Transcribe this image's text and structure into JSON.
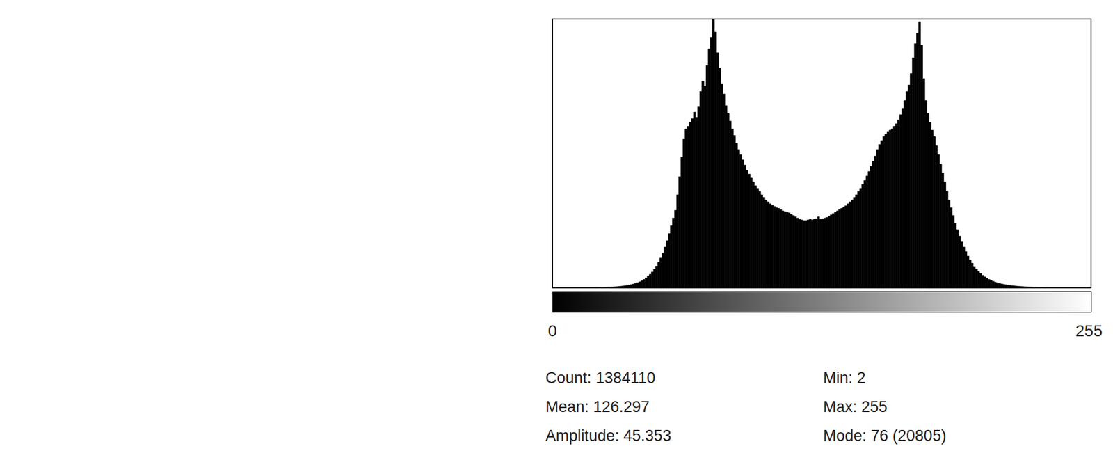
{
  "chart_data": {
    "type": "histogram",
    "color": "#000000",
    "grid": false,
    "tick_labels": "x",
    "xlim": [
      0,
      256
    ],
    "xticks": [
      0,
      255
    ],
    "ylim": [
      0,
      20805
    ],
    "yticks": [],
    "bins": [
      0,
      1,
      2,
      3,
      4,
      5,
      6,
      7,
      8,
      9,
      10,
      11,
      12,
      13,
      14,
      15,
      16,
      17,
      18,
      19,
      20,
      21,
      22,
      23,
      24,
      25,
      26,
      27,
      28,
      29,
      30,
      31,
      32,
      33,
      34,
      35,
      36,
      37,
      38,
      39,
      40,
      41,
      42,
      43,
      44,
      45,
      46,
      47,
      48,
      49,
      50,
      51,
      52,
      53,
      54,
      55,
      56,
      57,
      58,
      59,
      60,
      61,
      62,
      63,
      64,
      65,
      66,
      67,
      68,
      69,
      70,
      71,
      72,
      73,
      74,
      75,
      76,
      77,
      78,
      79,
      80,
      81,
      82,
      83,
      84,
      85,
      86,
      87,
      88,
      89,
      90,
      91,
      92,
      93,
      94,
      95,
      96,
      97,
      98,
      99,
      100,
      101,
      102,
      103,
      104,
      105,
      106,
      107,
      108,
      109,
      110,
      111,
      112,
      113,
      114,
      115,
      116,
      117,
      118,
      119,
      120,
      121,
      122,
      123,
      124,
      125,
      126,
      127,
      128,
      129,
      130,
      131,
      132,
      133,
      134,
      135,
      136,
      137,
      138,
      139,
      140,
      141,
      142,
      143,
      144,
      145,
      146,
      147,
      148,
      149,
      150,
      151,
      152,
      153,
      154,
      155,
      156,
      157,
      158,
      159,
      160,
      161,
      162,
      163,
      164,
      165,
      166,
      167,
      168,
      169,
      170,
      171,
      172,
      173,
      174,
      175,
      176,
      177,
      178,
      179,
      180,
      181,
      182,
      183,
      184,
      185,
      186,
      187,
      188,
      189,
      190,
      191,
      192,
      193,
      194,
      195,
      196,
      197,
      198,
      199,
      200,
      201,
      202,
      203,
      204,
      205,
      206,
      207,
      208,
      209,
      210,
      211,
      212,
      213,
      214,
      215,
      216,
      217,
      218,
      219,
      220,
      221,
      222,
      223,
      224,
      225,
      226,
      227,
      228,
      229,
      230,
      231,
      232,
      233,
      234,
      235,
      236,
      237,
      238,
      239,
      240,
      241,
      242,
      243,
      244,
      245,
      246,
      247,
      248,
      249,
      250,
      251,
      252,
      253,
      254,
      255,
      256
    ],
    "counts": [
      0,
      0,
      1,
      0,
      1,
      1,
      2,
      2,
      3,
      3,
      4,
      5,
      6,
      7,
      9,
      10,
      12,
      14,
      16,
      19,
      22,
      26,
      30,
      35,
      40,
      46,
      53,
      61,
      70,
      80,
      92,
      105,
      120,
      140,
      160,
      185,
      215,
      250,
      290,
      340,
      400,
      470,
      550,
      650,
      760,
      890,
      1040,
      1220,
      1430,
      1680,
      1970,
      2300,
      2700,
      3150,
      3650,
      4200,
      4800,
      5400,
      6000,
      7200,
      8600,
      10100,
      11500,
      12300,
      12500,
      12800,
      13100,
      13600,
      13200,
      14000,
      15200,
      16000,
      15600,
      17200,
      18500,
      19400,
      20805,
      19800,
      18200,
      17000,
      15800,
      15000,
      14100,
      13500,
      12900,
      12300,
      11800,
      11200,
      10700,
      10300,
      9900,
      9500,
      9100,
      8800,
      8500,
      8200,
      7900,
      7700,
      7450,
      7200,
      7000,
      6800,
      6650,
      6500,
      6380,
      6300,
      6200,
      6150,
      6050,
      5950,
      5900,
      5850,
      5800,
      5700,
      5600,
      5500,
      5400,
      5300,
      5250,
      5200,
      5200,
      5250,
      5300,
      5250,
      5300,
      5350,
      5500,
      5300,
      5350,
      5400,
      5450,
      5550,
      5650,
      5750,
      5850,
      5950,
      6050,
      6150,
      6250,
      6350,
      6500,
      6650,
      6800,
      7000,
      7200,
      7450,
      7700,
      8000,
      8300,
      8650,
      9000,
      9400,
      9800,
      10200,
      10700,
      11100,
      11400,
      11700,
      11900,
      12100,
      12200,
      12300,
      12500,
      12700,
      13000,
      13400,
      13900,
      14500,
      15200,
      15700,
      16600,
      17800,
      18900,
      19700,
      20600,
      18800,
      16200,
      14500,
      13500,
      12800,
      12200,
      11700,
      11000,
      10300,
      9600,
      8900,
      8200,
      7500,
      6800,
      6200,
      5600,
      5000,
      4500,
      4000,
      3550,
      3150,
      2800,
      2450,
      2150,
      1900,
      1650,
      1450,
      1270,
      1110,
      970,
      850,
      740,
      650,
      570,
      500,
      440,
      390,
      345,
      305,
      270,
      240,
      215,
      190,
      170,
      150,
      135,
      120,
      108,
      97,
      87,
      78,
      70,
      63,
      56,
      50,
      45,
      40,
      36,
      32,
      28,
      25,
      22,
      20,
      18,
      16,
      14,
      12,
      11,
      10,
      9,
      8,
      7,
      6,
      5,
      4,
      4,
      3,
      3,
      2,
      2,
      30
    ],
    "annotations": [
      "Count: 1384110",
      "Mean: 126.297",
      "Amplitude: 45.353",
      "Min: 2",
      "Max: 255",
      "Mode: 76 (20805)"
    ]
  }
}
